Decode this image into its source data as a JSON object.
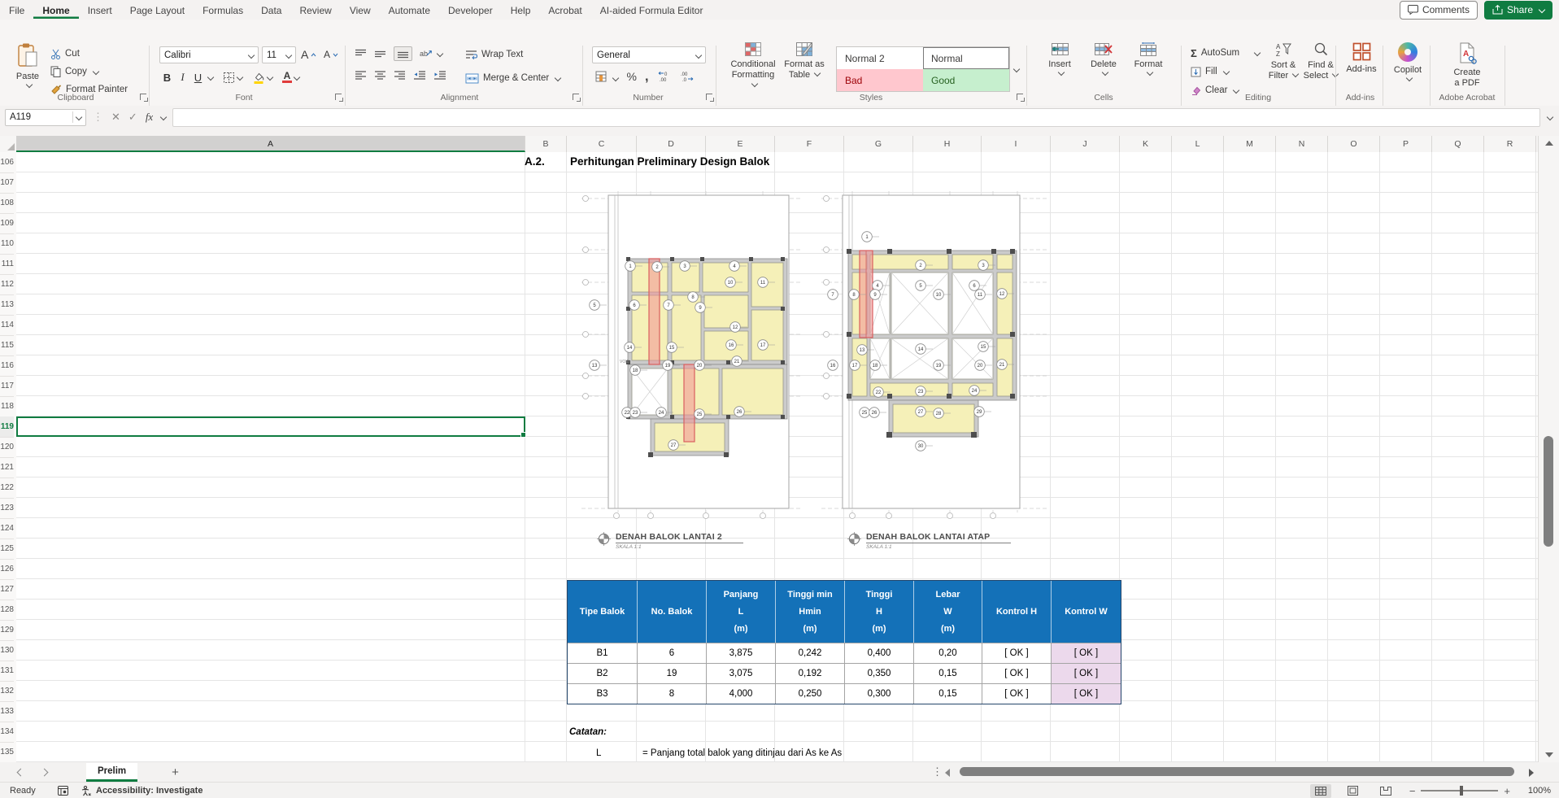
{
  "colors": {
    "accent": "#107c41",
    "table_header_blue": "#1471b8",
    "kontrol_pink": "#ecd9ec",
    "room_yellow": "#f5f0b8",
    "highlight_red": "#d95f5f",
    "bad_bg": "#ffc7ce",
    "bad_text": "#9c0006",
    "good_bg": "#c6efce",
    "good_text": "#276221"
  },
  "ribbon_tabs": {
    "items": [
      {
        "label": "File",
        "active": false
      },
      {
        "label": "Home",
        "active": true
      },
      {
        "label": "Insert",
        "active": false
      },
      {
        "label": "Page Layout",
        "active": false
      },
      {
        "label": "Formulas",
        "active": false
      },
      {
        "label": "Data",
        "active": false
      },
      {
        "label": "Review",
        "active": false
      },
      {
        "label": "View",
        "active": false
      },
      {
        "label": "Automate",
        "active": false
      },
      {
        "label": "Developer",
        "active": false
      },
      {
        "label": "Help",
        "active": false
      },
      {
        "label": "Acrobat",
        "active": false
      },
      {
        "label": "AI-aided Formula Editor",
        "active": false
      }
    ]
  },
  "window": {
    "comments": "Comments",
    "share": "Share"
  },
  "ribbon": {
    "clipboard": {
      "group": "Clipboard",
      "paste": "Paste",
      "cut": "Cut",
      "copy": "Copy",
      "format_painter": "Format Painter"
    },
    "font": {
      "group": "Font",
      "family": "Calibri",
      "size": "11"
    },
    "alignment": {
      "group": "Alignment",
      "wrap_text": "Wrap Text",
      "merge_center": "Merge & Center"
    },
    "number": {
      "group": "Number",
      "format": "General"
    },
    "styles": {
      "group": "Styles",
      "conditional_1": "Conditional",
      "conditional_2": "Formatting ",
      "format_1": "Format as",
      "format_2": "Table ",
      "gallery": [
        {
          "label": "Normal 2",
          "kind": "normal2",
          "selected": false
        },
        {
          "label": "Normal",
          "kind": "normal",
          "selected": true
        },
        {
          "label": "Bad",
          "kind": "bad",
          "selected": false
        },
        {
          "label": "Good",
          "kind": "good",
          "selected": false
        }
      ]
    },
    "cells": {
      "group": "Cells",
      "insert": "Insert",
      "delete": "Delete",
      "format": "Format"
    },
    "editing": {
      "group": "Editing",
      "autosum": "AutoSum",
      "fill": "Fill",
      "clear": "Clear",
      "sort_1": "Sort &",
      "sort_2": "Filter ",
      "find_1": "Find &",
      "find_2": "Select "
    },
    "addins": {
      "group": "Add-ins",
      "label": "Add-ins"
    },
    "copilot": {
      "label": "Copilot"
    },
    "acrobat": {
      "group": "Adobe Acrobat",
      "create_1": "Create",
      "create_2": "a PDF"
    }
  },
  "formula_bar": {
    "name_box": "A119",
    "fx": "fx",
    "formula": ""
  },
  "grid": {
    "columns": [
      "A",
      "B",
      "C",
      "D",
      "E",
      "F",
      "G",
      "H",
      "I",
      "J",
      "K",
      "L",
      "M",
      "N",
      "O",
      "P",
      "Q",
      "R"
    ],
    "rows": [
      106,
      107,
      108,
      109,
      110,
      111,
      112,
      113,
      114,
      115,
      116,
      117,
      118,
      119,
      120,
      121,
      122,
      123,
      124,
      125,
      126,
      127,
      128,
      129,
      130,
      131,
      132,
      133,
      134,
      135
    ],
    "selected_cell": "A119"
  },
  "sheet": {
    "title_no": "A.2.",
    "title": "Perhitungan Preliminary Design Balok",
    "captions": [
      {
        "title": "DENAH BALOK LANTAI 2",
        "scale": "SKALA 1:1"
      },
      {
        "title": "DENAH BALOK LANTAI ATAP",
        "scale": "SKALA 1:1"
      }
    ],
    "table": {
      "header_lines": [
        [
          "Tipe Balok"
        ],
        [
          "No. Balok"
        ],
        [
          "Panjang",
          "L",
          "(m)"
        ],
        [
          "Tinggi min",
          "Hmin",
          "(m)"
        ],
        [
          "Tinggi",
          "H",
          "(m)"
        ],
        [
          "Lebar",
          "W",
          "(m)"
        ],
        [
          "Kontrol H"
        ],
        [
          "Kontrol W"
        ]
      ],
      "rows": [
        [
          "B1",
          "6",
          "3,875",
          "0,242",
          "0,400",
          "0,20",
          "[ OK ]",
          "[ OK ]"
        ],
        [
          "B2",
          "19",
          "3,075",
          "0,192",
          "0,350",
          "0,15",
          "[ OK ]",
          "[ OK ]"
        ],
        [
          "B3",
          "8",
          "4,000",
          "0,250",
          "0,300",
          "0,15",
          "[ OK ]",
          "[ OK ]"
        ]
      ]
    },
    "notes": {
      "heading": "Catatan:",
      "term": "L",
      "definition": "= Panjang total balok yang ditinjau dari As ke As"
    }
  },
  "plans": {
    "left": {
      "void_label": "VOID",
      "bubbles": [
        [
          1,
          75,
          97
        ],
        [
          2,
          108,
          98
        ],
        [
          3,
          142,
          97
        ],
        [
          4,
          203,
          97
        ],
        [
          5,
          31,
          145
        ],
        [
          6,
          80,
          145
        ],
        [
          7,
          122,
          145
        ],
        [
          8,
          152,
          135
        ],
        [
          9,
          161,
          148
        ],
        [
          10,
          198,
          117
        ],
        [
          11,
          238,
          117
        ],
        [
          12,
          204,
          172
        ],
        [
          13,
          31,
          219
        ],
        [
          14,
          74,
          197
        ],
        [
          15,
          126,
          197
        ],
        [
          16,
          199,
          194
        ],
        [
          17,
          238,
          194
        ],
        [
          18,
          81,
          225
        ],
        [
          19,
          121,
          219
        ],
        [
          20,
          160,
          219
        ],
        [
          21,
          206,
          214
        ],
        [
          22,
          71,
          277
        ],
        [
          23,
          81,
          277
        ],
        [
          24,
          113,
          277
        ],
        [
          25,
          160,
          279
        ],
        [
          26,
          209,
          276
        ],
        [
          27,
          128,
          317
        ]
      ]
    },
    "right": {
      "bubbles": [
        [
          1,
          58,
          61
        ],
        [
          2,
          124,
          96
        ],
        [
          3,
          201,
          96
        ],
        [
          4,
          71,
          121
        ],
        [
          5,
          124,
          121
        ],
        [
          6,
          190,
          121
        ],
        [
          7,
          16,
          132
        ],
        [
          8,
          42,
          132
        ],
        [
          9,
          68,
          132
        ],
        [
          10,
          146,
          132
        ],
        [
          11,
          197,
          132
        ],
        [
          12,
          224,
          131
        ],
        [
          13,
          52,
          200
        ],
        [
          14,
          124,
          199
        ],
        [
          15,
          201,
          196
        ],
        [
          16,
          16,
          219
        ],
        [
          17,
          43,
          219
        ],
        [
          18,
          68,
          219
        ],
        [
          19,
          146,
          219
        ],
        [
          20,
          197,
          219
        ],
        [
          21,
          224,
          218
        ],
        [
          22,
          72,
          252
        ],
        [
          23,
          124,
          251
        ],
        [
          24,
          190,
          250
        ],
        [
          25,
          55,
          277
        ],
        [
          26,
          67,
          277
        ],
        [
          27,
          124,
          276
        ],
        [
          28,
          146,
          278
        ],
        [
          29,
          196,
          276
        ],
        [
          30,
          124,
          318
        ]
      ]
    }
  },
  "sheet_tabs": {
    "active": "Prelim"
  },
  "status_bar": {
    "mode": "Ready",
    "accessibility": "Accessibility: Investigate",
    "zoom_level": "100%"
  }
}
